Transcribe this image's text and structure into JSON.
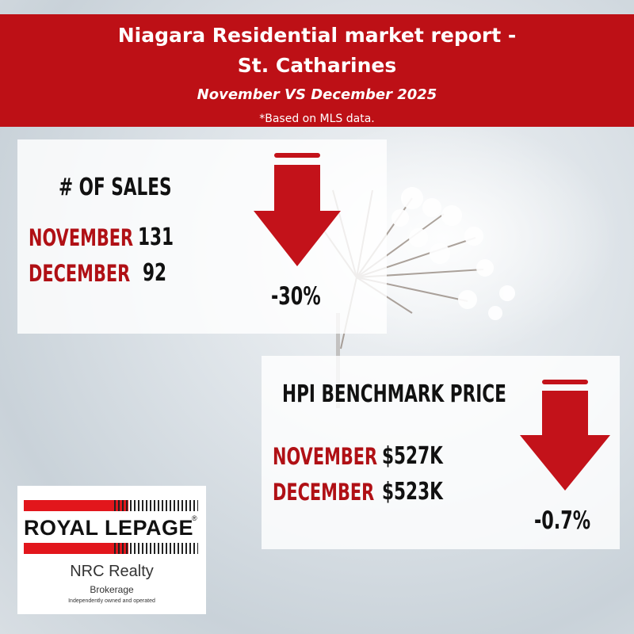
{
  "header": {
    "title_line1": "Niagara Residential market report -",
    "title_line2": "St. Catharines",
    "subtitle": "November VS December 2025",
    "note": "*Based on MLS data."
  },
  "sales": {
    "heading": "# OF SALES",
    "rows": [
      {
        "label": "NOVEMBER",
        "value": "131"
      },
      {
        "label": "DECEMBER",
        "value": "92"
      }
    ],
    "change": "-30%",
    "direction": "down"
  },
  "hpi": {
    "heading": "HPI BENCHMARK PRICE",
    "rows": [
      {
        "label": "NOVEMBER",
        "value": "$527K"
      },
      {
        "label": "DECEMBER",
        "value": "$523K"
      }
    ],
    "change": "-0.7%",
    "direction": "down"
  },
  "logo": {
    "brand": "ROYAL LEPAGE",
    "registered": "®",
    "office": "NRC Realty",
    "type": "Brokerage",
    "tagline": "Independently owned and operated"
  },
  "colors": {
    "brand_red": "#bd1016",
    "arrow_red": "#c3121a",
    "label_red": "#b01015"
  },
  "icons": {
    "change_indicator": "down-arrow-icon",
    "background": "frosted-flower-image"
  }
}
